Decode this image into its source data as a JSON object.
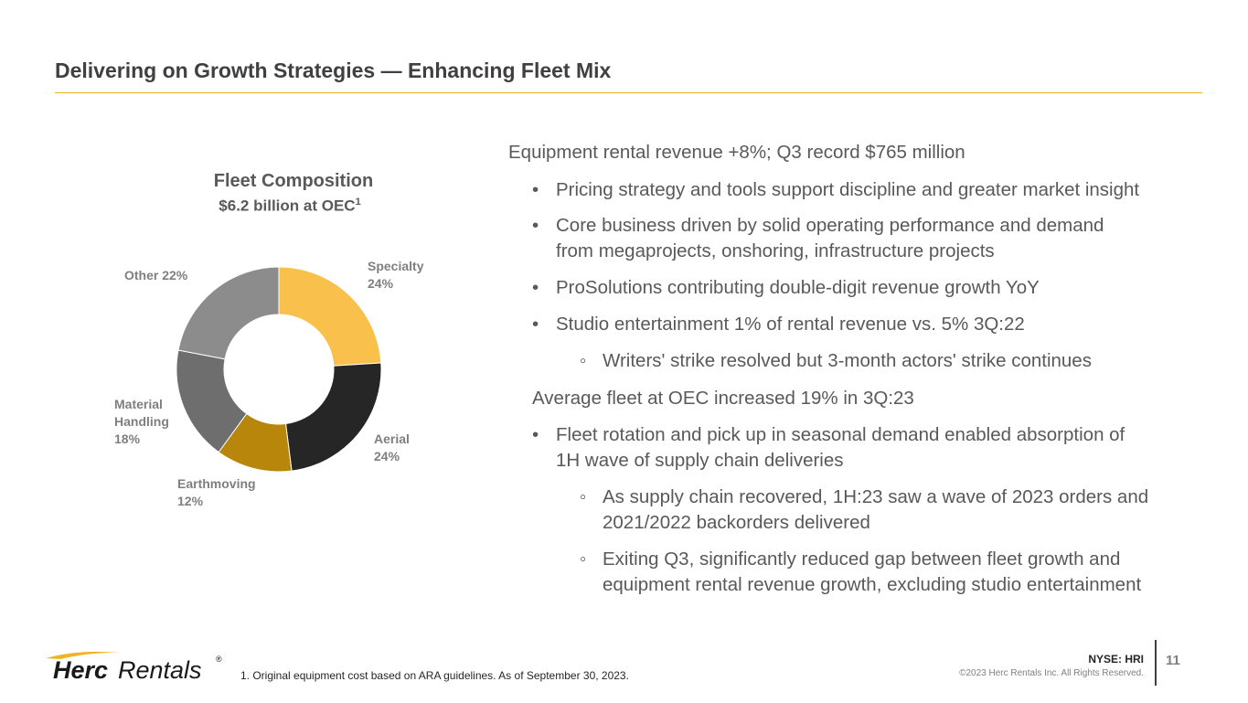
{
  "slide": {
    "title": "Delivering on Growth Strategies — Enhancing Fleet Mix",
    "colors": {
      "accent": "#f0b323",
      "title_text": "#404040",
      "body_text": "#595959"
    }
  },
  "chart_data": {
    "type": "pie",
    "title": "Fleet Composition",
    "subtitle": "$6.2 billion at OEC",
    "subtitle_superscript": "1",
    "categories": [
      "Specialty",
      "Aerial",
      "Earthmoving",
      "Material Handling",
      "Other"
    ],
    "values": [
      24,
      24,
      12,
      18,
      22
    ],
    "unit": "%",
    "labels": [
      {
        "line1": "Specialty",
        "line2": "24%"
      },
      {
        "line1": "Aerial",
        "line2": "24%"
      },
      {
        "line1": "Earthmoving",
        "line2": "12%"
      },
      {
        "line1": "Material",
        "line2": "Handling",
        "line3": "18%"
      },
      {
        "line1": "Other 22%"
      }
    ],
    "colors": [
      "#f9c04b",
      "#262626",
      "#b8860b",
      "#6e6e6e",
      "#8c8c8c"
    ]
  },
  "content": {
    "heading1": "Equipment rental revenue +8%; Q3 record $765 million",
    "b1": "Pricing strategy and tools support discipline and greater market insight",
    "b2_line1": "Core business driven by solid operating performance and demand",
    "b2_line2": "from megaprojects, onshoring, infrastructure projects",
    "b3": "ProSolutions contributing double-digit revenue growth YoY",
    "b4": "Studio entertainment 1% of rental revenue vs. 5% 3Q:22",
    "b4_sub": "Writers' strike resolved but 3-month actors' strike continues",
    "heading2": "Average fleet at OEC increased 19% in 3Q:23",
    "b5_line1": "Fleet rotation and pick up in seasonal demand enabled absorption of",
    "b5_line2": "1H wave of supply chain deliveries",
    "s1_line1": "As supply chain recovered, 1H:23 saw a wave of 2023 orders and",
    "s1_line2": "2021/2022 backorders delivered",
    "s2_line1": "Exiting Q3, significantly reduced gap between fleet growth and",
    "s2_line2": "equipment rental revenue growth, excluding studio entertainment",
    "bullet_char": "•",
    "sub_bullet_char": "◦"
  },
  "footer": {
    "logo_part1": "Herc",
    "logo_part2": "Rentals",
    "logo_mark": "®",
    "footnote": "1. Original equipment cost based on ARA guidelines. As of September 30, 2023.",
    "ticker": "NYSE: HRI",
    "copyright": "©2023 Herc Rentals Inc.  All Rights Reserved.",
    "page_number": "11"
  }
}
